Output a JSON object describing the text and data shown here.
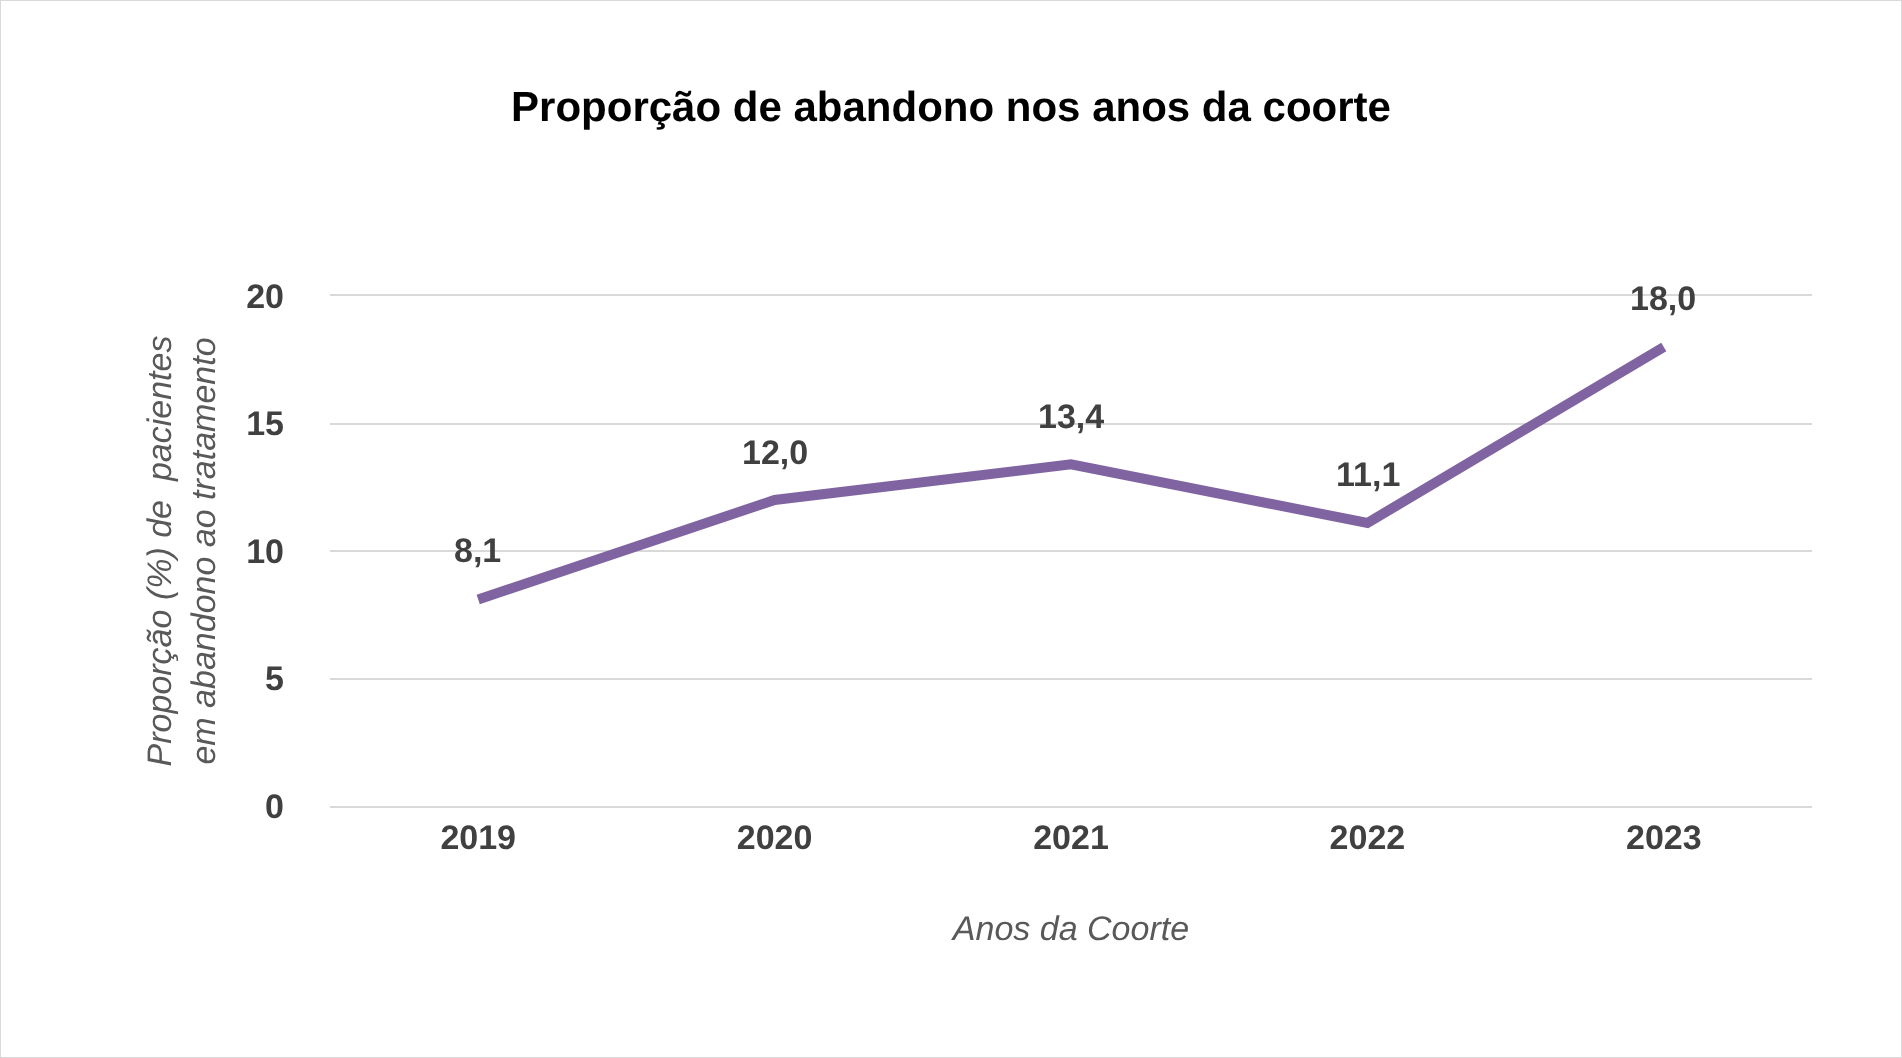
{
  "chart_data": {
    "type": "line",
    "title": "Proporção de abandono nos anos da coorte",
    "xlabel": "Anos da Coorte",
    "ylabel": "Proporção (%) de  pacientes\nem abandono ao tratamento",
    "categories": [
      "2019",
      "2020",
      "2021",
      "2022",
      "2023"
    ],
    "series": [
      {
        "color": "#8064a2",
        "values": [
          8.1,
          12.0,
          13.4,
          11.1,
          18.0
        ]
      }
    ],
    "value_labels": [
      "8,1",
      "12,0",
      "13,4",
      "11,1",
      "18,0"
    ],
    "ylim": [
      0,
      20
    ],
    "yticks": [
      0,
      5,
      10,
      15,
      20
    ],
    "grid": "y",
    "marker": "none",
    "line_style": "solid"
  }
}
